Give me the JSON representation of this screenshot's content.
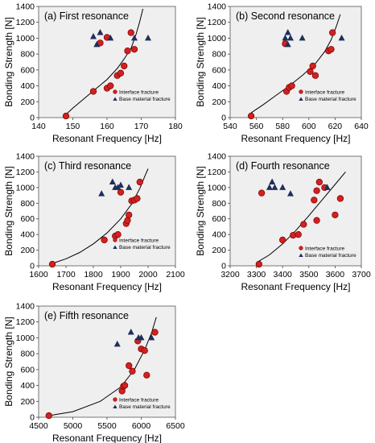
{
  "legend": {
    "interface": "Interface fracture",
    "base": "Base material fracture"
  },
  "colors": {
    "interface_fill": "#d32020",
    "interface_stroke": "#7a0000",
    "base_fill": "#1f2f5c",
    "plot_bg": "#efefef",
    "fit_line": "#000000"
  },
  "chart_data": [
    {
      "type": "scatter",
      "title": "(a) First resonance",
      "xlabel": "Resonant Frequency [Hz]",
      "ylabel": "Bonding Strength [N]",
      "xlim": [
        140,
        180
      ],
      "ylim": [
        0,
        1400
      ],
      "xticks": [
        140,
        150,
        160,
        170,
        180
      ],
      "yticks": [
        0,
        200,
        400,
        600,
        800,
        1000,
        1200,
        1400
      ],
      "legend_position": "inside-right",
      "series": [
        {
          "name": "Interface fracture",
          "marker": "circle",
          "points": [
            [
              148,
              20
            ],
            [
              156,
              330
            ],
            [
              158,
              940
            ],
            [
              160,
              370
            ],
            [
              161,
              400
            ],
            [
              163,
              530
            ],
            [
              164,
              560
            ],
            [
              165,
              650
            ],
            [
              166,
              840
            ],
            [
              167,
              1070
            ],
            [
              168,
              860
            ],
            [
              160,
              1010
            ]
          ]
        },
        {
          "name": "Base material fracture",
          "marker": "triangle",
          "points": [
            [
              156,
              1020
            ],
            [
              157,
              920
            ],
            [
              158,
              1070
            ],
            [
              161,
              1000
            ],
            [
              168,
              1000
            ],
            [
              172,
              1000
            ]
          ]
        }
      ],
      "fit_curve": [
        [
          147.5,
          20
        ],
        [
          150,
          120
        ],
        [
          155,
          300
        ],
        [
          160,
          480
        ],
        [
          163,
          620
        ],
        [
          165,
          740
        ],
        [
          167,
          870
        ],
        [
          168.5,
          1050
        ],
        [
          169.5,
          1200
        ],
        [
          170.5,
          1370
        ]
      ]
    },
    {
      "type": "scatter",
      "title": "(b) Second resonance",
      "xlabel": "Resonant Frequency [Hz]",
      "ylabel": "Bonding Strength [N]",
      "xlim": [
        540,
        640
      ],
      "ylim": [
        0,
        1400
      ],
      "xticks": [
        540,
        560,
        580,
        600,
        620,
        640
      ],
      "yticks": [
        0,
        200,
        400,
        600,
        800,
        1000,
        1200,
        1400
      ],
      "legend_position": "inside-right",
      "series": [
        {
          "name": "Interface fracture",
          "marker": "circle",
          "points": [
            [
              556,
              20
            ],
            [
              582,
              930
            ],
            [
              583,
              330
            ],
            [
              585,
              380
            ],
            [
              587,
              400
            ],
            [
              601,
              580
            ],
            [
              603,
              650
            ],
            [
              605,
              530
            ],
            [
              615,
              840
            ],
            [
              617,
              860
            ],
            [
              618,
              1070
            ]
          ]
        },
        {
          "name": "Base material fracture",
          "marker": "triangle",
          "points": [
            [
              582,
              1000
            ],
            [
              584,
              1070
            ],
            [
              584,
              920
            ],
            [
              586,
              1000
            ],
            [
              595,
              1000
            ],
            [
              625,
              1000
            ]
          ]
        }
      ],
      "fit_curve": [
        [
          556,
          60
        ],
        [
          565,
          160
        ],
        [
          575,
          280
        ],
        [
          585,
          400
        ],
        [
          595,
          530
        ],
        [
          605,
          680
        ],
        [
          612,
          830
        ],
        [
          617,
          980
        ],
        [
          621,
          1150
        ],
        [
          624,
          1300
        ]
      ]
    },
    {
      "type": "scatter",
      "title": "(c) Third resonance",
      "xlabel": "Resonant Frequency [Hz]",
      "ylabel": "Bonding Strength [N]",
      "xlim": [
        1600,
        2100
      ],
      "ylim": [
        0,
        1400
      ],
      "xticks": [
        1600,
        1700,
        1800,
        1900,
        2000,
        2100
      ],
      "yticks": [
        0,
        200,
        400,
        600,
        800,
        1000,
        1200,
        1400
      ],
      "legend_position": "inside-right",
      "series": [
        {
          "name": "Interface fracture",
          "marker": "circle",
          "points": [
            [
              1650,
              20
            ],
            [
              1840,
              330
            ],
            [
              1880,
              380
            ],
            [
              1890,
              400
            ],
            [
              1900,
              940
            ],
            [
              1920,
              540
            ],
            [
              1925,
              580
            ],
            [
              1930,
              650
            ],
            [
              1940,
              830
            ],
            [
              1950,
              840
            ],
            [
              1960,
              860
            ],
            [
              1970,
              1070
            ]
          ]
        },
        {
          "name": "Base material fracture",
          "marker": "triangle",
          "points": [
            [
              1830,
              920
            ],
            [
              1870,
              1070
            ],
            [
              1880,
              1000
            ],
            [
              1890,
              1000
            ],
            [
              1900,
              1030
            ],
            [
              1930,
              1000
            ]
          ]
        }
      ],
      "fit_curve": [
        [
          1650,
          30
        ],
        [
          1700,
          90
        ],
        [
          1750,
          170
        ],
        [
          1800,
          280
        ],
        [
          1850,
          420
        ],
        [
          1900,
          600
        ],
        [
          1940,
          790
        ],
        [
          1970,
          990
        ],
        [
          1990,
          1160
        ],
        [
          2000,
          1240
        ]
      ]
    },
    {
      "type": "scatter",
      "title": "(d) Fourth resonance",
      "xlabel": "Resonant Frequency [Hz]",
      "ylabel": "Bonding Strength [N]",
      "xlim": [
        3200,
        3700
      ],
      "ylim": [
        0,
        1400
      ],
      "xticks": [
        3200,
        3300,
        3400,
        3500,
        3600,
        3700
      ],
      "yticks": [
        0,
        200,
        400,
        600,
        800,
        1000,
        1200,
        1400
      ],
      "legend_position": "inside-bottom-right",
      "series": [
        {
          "name": "Interface fracture",
          "marker": "circle",
          "points": [
            [
              3310,
              20
            ],
            [
              3320,
              930
            ],
            [
              3400,
              330
            ],
            [
              3440,
              390
            ],
            [
              3460,
              400
            ],
            [
              3480,
              530
            ],
            [
              3520,
              840
            ],
            [
              3530,
              580
            ],
            [
              3540,
              1070
            ],
            [
              3560,
              1000
            ],
            [
              3600,
              650
            ],
            [
              3620,
              860
            ],
            [
              3530,
              960
            ]
          ]
        },
        {
          "name": "Base material fracture",
          "marker": "triangle",
          "points": [
            [
              3350,
              1000
            ],
            [
              3360,
              1070
            ],
            [
              3370,
              1000
            ],
            [
              3400,
              1000
            ],
            [
              3430,
              920
            ],
            [
              3570,
              1000
            ]
          ]
        }
      ],
      "fit_curve": [
        [
          3300,
          40
        ],
        [
          3350,
          140
        ],
        [
          3400,
          280
        ],
        [
          3450,
          450
        ],
        [
          3500,
          640
        ],
        [
          3550,
          840
        ],
        [
          3600,
          1040
        ],
        [
          3640,
          1200
        ]
      ]
    },
    {
      "type": "scatter",
      "title": "(e) Fifth resonance",
      "xlabel": "Resonant Frequency [Hz]",
      "ylabel": "Bonding Strength [N]",
      "xlim": [
        4500,
        6500
      ],
      "ylim": [
        0,
        1400
      ],
      "xticks": [
        4500,
        5000,
        5500,
        6000,
        6500
      ],
      "yticks": [
        0,
        200,
        400,
        600,
        800,
        1000,
        1200,
        1400
      ],
      "legend_position": "inside-bottom-right",
      "series": [
        {
          "name": "Interface fracture",
          "marker": "circle",
          "points": [
            [
              4650,
              20
            ],
            [
              5720,
              330
            ],
            [
              5740,
              390
            ],
            [
              5760,
              400
            ],
            [
              5820,
              650
            ],
            [
              5870,
              580
            ],
            [
              5950,
              960
            ],
            [
              6000,
              860
            ],
            [
              6050,
              840
            ],
            [
              6080,
              530
            ],
            [
              6200,
              1070
            ]
          ]
        },
        {
          "name": "Base material fracture",
          "marker": "triangle",
          "points": [
            [
              5650,
              920
            ],
            [
              5850,
              1070
            ],
            [
              5960,
              1000
            ],
            [
              6000,
              1000
            ],
            [
              6150,
              1000
            ]
          ]
        }
      ],
      "fit_curve": [
        [
          4650,
          20
        ],
        [
          5000,
          70
        ],
        [
          5400,
          200
        ],
        [
          5700,
          380
        ],
        [
          5900,
          600
        ],
        [
          6050,
          850
        ],
        [
          6150,
          1060
        ],
        [
          6220,
          1260
        ]
      ]
    }
  ]
}
